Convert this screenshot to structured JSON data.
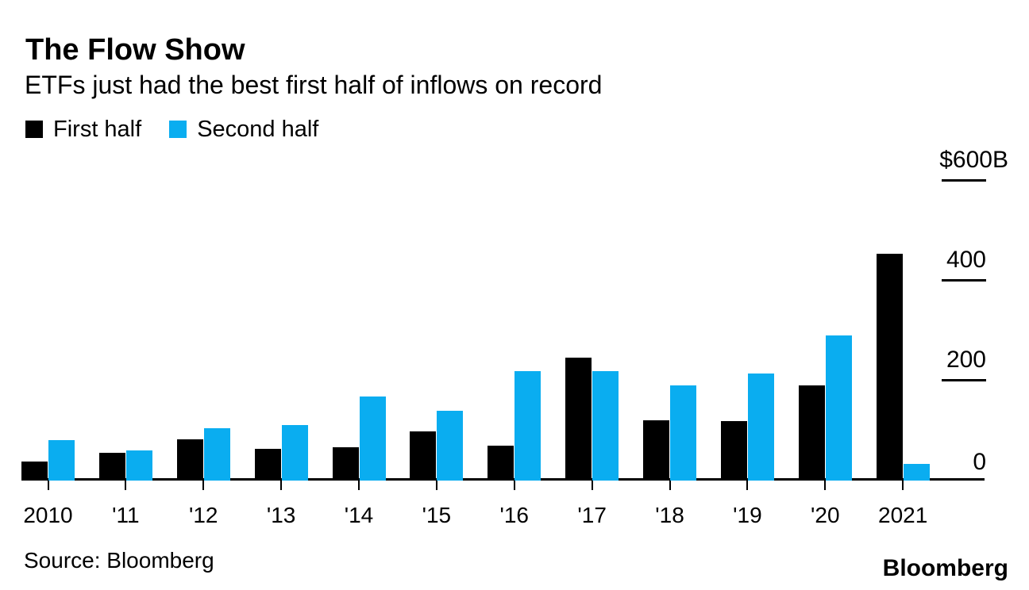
{
  "header": {
    "title": "The Flow Show",
    "subtitle": "ETFs just had the best first half of inflows on record"
  },
  "legend": [
    {
      "label": "First half",
      "color": "#000000"
    },
    {
      "label": "Second half",
      "color": "#0aadf0"
    }
  ],
  "chart_data": {
    "type": "bar",
    "title": "The Flow Show",
    "subtitle": "ETFs just had the best first half of inflows on record",
    "unit": "billions USD",
    "categories": [
      "2010",
      "2011",
      "2012",
      "2013",
      "2014",
      "2015",
      "2016",
      "2017",
      "2018",
      "2019",
      "2020",
      "2021"
    ],
    "tick_labels": [
      "2010",
      "'11",
      "'12",
      "'13",
      "'14",
      "'15",
      "'16",
      "'17",
      "'18",
      "'19",
      "'20",
      "2021"
    ],
    "series": [
      {
        "name": "First half",
        "color": "#000000",
        "values": [
          38,
          55,
          83,
          63,
          66,
          98,
          70,
          246,
          120,
          118,
          190,
          452
        ]
      },
      {
        "name": "Second half",
        "color": "#0aadf0",
        "values": [
          80,
          60,
          104,
          111,
          168,
          140,
          218,
          218,
          190,
          214,
          290,
          33
        ]
      }
    ],
    "y_axis": {
      "side": "right",
      "range": [
        0,
        600
      ],
      "ticks": [
        {
          "value": 0,
          "label": "0"
        },
        {
          "value": 200,
          "label": "200"
        },
        {
          "value": 400,
          "label": "400"
        },
        {
          "value": 600,
          "label": "$600B"
        }
      ],
      "grid": false
    },
    "legend_position": "top-left"
  },
  "footer": {
    "source": "Source: Bloomberg",
    "logo": "Bloomberg"
  }
}
